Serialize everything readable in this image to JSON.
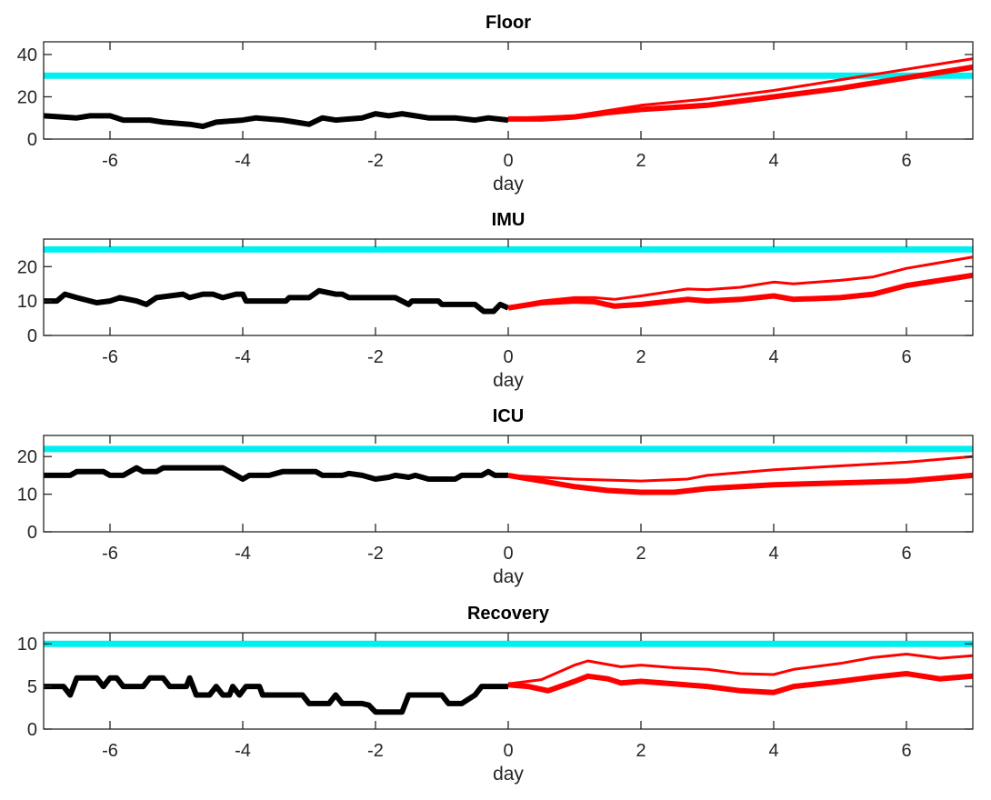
{
  "chart_data": [
    {
      "type": "line",
      "title": "Floor",
      "xlabel": "day",
      "xlim": [
        -7,
        7
      ],
      "ylim": [
        0,
        46
      ],
      "xticks": [
        -6,
        -4,
        -2,
        0,
        2,
        4,
        6
      ],
      "yticks": [
        0,
        20,
        40
      ],
      "threshold": 30,
      "history": {
        "x": [
          -7,
          -6.5,
          -6.3,
          -6,
          -5.8,
          -5.4,
          -5.2,
          -4.8,
          -4.6,
          -4.4,
          -4,
          -3.8,
          -3.4,
          -3.2,
          -3,
          -2.8,
          -2.6,
          -2.2,
          -2,
          -1.8,
          -1.6,
          -1.4,
          -1.2,
          -0.8,
          -0.5,
          -0.3,
          0
        ],
        "y": [
          11,
          10,
          11,
          11,
          9,
          9,
          8,
          7,
          6,
          8,
          9,
          10,
          9,
          8,
          7,
          10,
          9,
          10,
          12,
          11,
          12,
          11,
          10,
          10,
          9,
          10,
          9
        ]
      },
      "forecast_upper": {
        "x": [
          0,
          1,
          1.5,
          2,
          3,
          4,
          5,
          6,
          7
        ],
        "y": [
          9.8,
          11,
          13.5,
          16,
          19,
          23,
          28,
          33,
          38
        ]
      },
      "forecast_lower": {
        "x": [
          0,
          0.5,
          1,
          1.5,
          2,
          3,
          4,
          5,
          6,
          7
        ],
        "y": [
          9.5,
          9.5,
          10.5,
          12.5,
          14,
          16,
          20,
          24,
          29,
          34
        ]
      }
    },
    {
      "type": "line",
      "title": "IMU",
      "xlabel": "day",
      "xlim": [
        -7,
        7
      ],
      "ylim": [
        0,
        28
      ],
      "xticks": [
        -6,
        -4,
        -2,
        0,
        2,
        4,
        6
      ],
      "yticks": [
        0,
        10,
        20
      ],
      "threshold": 25,
      "history": {
        "x": [
          -7,
          -6.8,
          -6.68,
          -6.5,
          -6.2,
          -6,
          -5.85,
          -5.6,
          -5.45,
          -5.3,
          -4.9,
          -4.8,
          -4.6,
          -4.45,
          -4.3,
          -4.1,
          -4,
          -3.95,
          -3.35,
          -3.3,
          -3,
          -2.85,
          -2.6,
          -2.5,
          -2.4,
          -1.7,
          -1.5,
          -1.45,
          -1.05,
          -1,
          -0.5,
          -0.37,
          -0.22,
          -0.12,
          0
        ],
        "y": [
          10,
          10,
          12,
          11,
          9.5,
          10,
          11,
          10,
          9,
          11,
          12,
          11,
          12,
          12,
          11,
          12,
          12,
          10,
          10,
          11,
          11,
          13,
          12,
          12,
          11,
          11,
          9,
          10,
          10,
          9,
          9,
          7,
          7,
          9,
          8
        ]
      },
      "forecast_upper": {
        "x": [
          0,
          0.5,
          1,
          1.3,
          1.6,
          2,
          2.7,
          3,
          3.5,
          4,
          4.3,
          5,
          5.5,
          6,
          7
        ],
        "y": [
          8.2,
          10,
          11,
          11,
          10.5,
          11.5,
          13.5,
          13.3,
          14,
          15.5,
          15,
          16,
          17,
          19.5,
          22.8
        ]
      },
      "forecast_lower": {
        "x": [
          0,
          0.5,
          1,
          1.3,
          1.6,
          2,
          2.7,
          3,
          3.5,
          4,
          4.3,
          5,
          5.5,
          6,
          7
        ],
        "y": [
          8,
          9.5,
          10,
          9.8,
          8.5,
          9,
          10.5,
          10,
          10.5,
          11.5,
          10.5,
          11,
          12,
          14.5,
          17.5
        ]
      }
    },
    {
      "type": "line",
      "title": "ICU",
      "xlabel": "day",
      "xlim": [
        -7,
        7
      ],
      "ylim": [
        0,
        25.6
      ],
      "xticks": [
        -6,
        -4,
        -2,
        0,
        2,
        4,
        6
      ],
      "yticks": [
        0,
        10,
        20
      ],
      "threshold": 22,
      "history": {
        "x": [
          -7,
          -6.6,
          -6.5,
          -6.1,
          -6,
          -5.8,
          -5.7,
          -5.6,
          -5.5,
          -5.3,
          -5.2,
          -4.3,
          -4.1,
          -4,
          -3.9,
          -3.7,
          -3.6,
          -3.4,
          -2.9,
          -2.8,
          -2.5,
          -2.4,
          -2.2,
          -2,
          -1.8,
          -1.7,
          -1.5,
          -1.4,
          -1.2,
          -0.8,
          -0.7,
          -0.4,
          -0.3,
          -0.2,
          0
        ],
        "y": [
          15,
          15,
          16,
          16,
          15,
          15,
          16,
          17,
          16,
          16,
          17,
          17,
          15,
          14,
          15,
          15,
          15,
          16,
          16,
          15,
          15,
          15.5,
          15,
          14,
          14.5,
          15,
          14.5,
          15,
          14,
          14,
          15,
          15,
          16,
          15,
          15
        ]
      },
      "forecast_upper": {
        "x": [
          0,
          1,
          2,
          2.7,
          3,
          4,
          5,
          6,
          7
        ],
        "y": [
          15,
          14,
          13.5,
          14,
          15,
          16.5,
          17.5,
          18.5,
          20
        ]
      },
      "forecast_lower": {
        "x": [
          0,
          0.5,
          1,
          1.5,
          2,
          2.5,
          3,
          4,
          5,
          6,
          7
        ],
        "y": [
          15,
          13.5,
          12,
          11,
          10.5,
          10.5,
          11.5,
          12.5,
          13,
          13.5,
          15
        ]
      }
    },
    {
      "type": "line",
      "title": "Recovery",
      "xlabel": "day",
      "xlim": [
        -7,
        7
      ],
      "ylim": [
        0,
        11.3
      ],
      "xticks": [
        -6,
        -4,
        -2,
        0,
        2,
        4,
        6
      ],
      "yticks": [
        0,
        5,
        10
      ],
      "threshold": 10,
      "history": {
        "x": [
          -7,
          -6.7,
          -6.6,
          -6.5,
          -6.2,
          -6.1,
          -6,
          -5.9,
          -5.8,
          -5.5,
          -5.4,
          -5.2,
          -5.1,
          -4.85,
          -4.8,
          -4.7,
          -4.5,
          -4.4,
          -4.3,
          -4.2,
          -4.15,
          -4.05,
          -3.95,
          -3.75,
          -3.7,
          -3.1,
          -3,
          -2.7,
          -2.6,
          -2.5,
          -2.2,
          -2.1,
          -2,
          -1.6,
          -1.5,
          -1,
          -0.9,
          -0.7,
          -0.5,
          -0.4,
          0
        ],
        "y": [
          5,
          5,
          4,
          6,
          6,
          5,
          6,
          6,
          5,
          5,
          6,
          6,
          5,
          5,
          6,
          4,
          4,
          5,
          4,
          4,
          5,
          4,
          5,
          5,
          4,
          4,
          3,
          3,
          4,
          3,
          3,
          2.8,
          2,
          2,
          4,
          4,
          3,
          3,
          4,
          5,
          5
        ]
      },
      "forecast_upper": {
        "x": [
          0,
          0.5,
          1,
          1.2,
          1.7,
          2,
          2.5,
          3,
          3.5,
          4,
          4.3,
          5,
          5.5,
          6,
          6.5,
          7
        ],
        "y": [
          5.3,
          5.8,
          7.5,
          8,
          7.3,
          7.5,
          7.2,
          7,
          6.5,
          6.4,
          7,
          7.7,
          8.4,
          8.8,
          8.3,
          8.6
        ]
      },
      "forecast_lower": {
        "x": [
          0,
          0.3,
          0.6,
          1,
          1.2,
          1.5,
          1.7,
          2,
          2.5,
          3,
          3.5,
          4,
          4.3,
          5,
          5.5,
          6,
          6.5,
          7
        ],
        "y": [
          5.2,
          5,
          4.5,
          5.6,
          6.2,
          5.9,
          5.4,
          5.6,
          5.3,
          5,
          4.5,
          4.3,
          5,
          5.6,
          6.1,
          6.5,
          5.9,
          6.2
        ]
      }
    }
  ],
  "colors": {
    "history": "#000000",
    "forecast": "#ff0000",
    "threshold": "#00f0f0",
    "axes": "#262626"
  }
}
